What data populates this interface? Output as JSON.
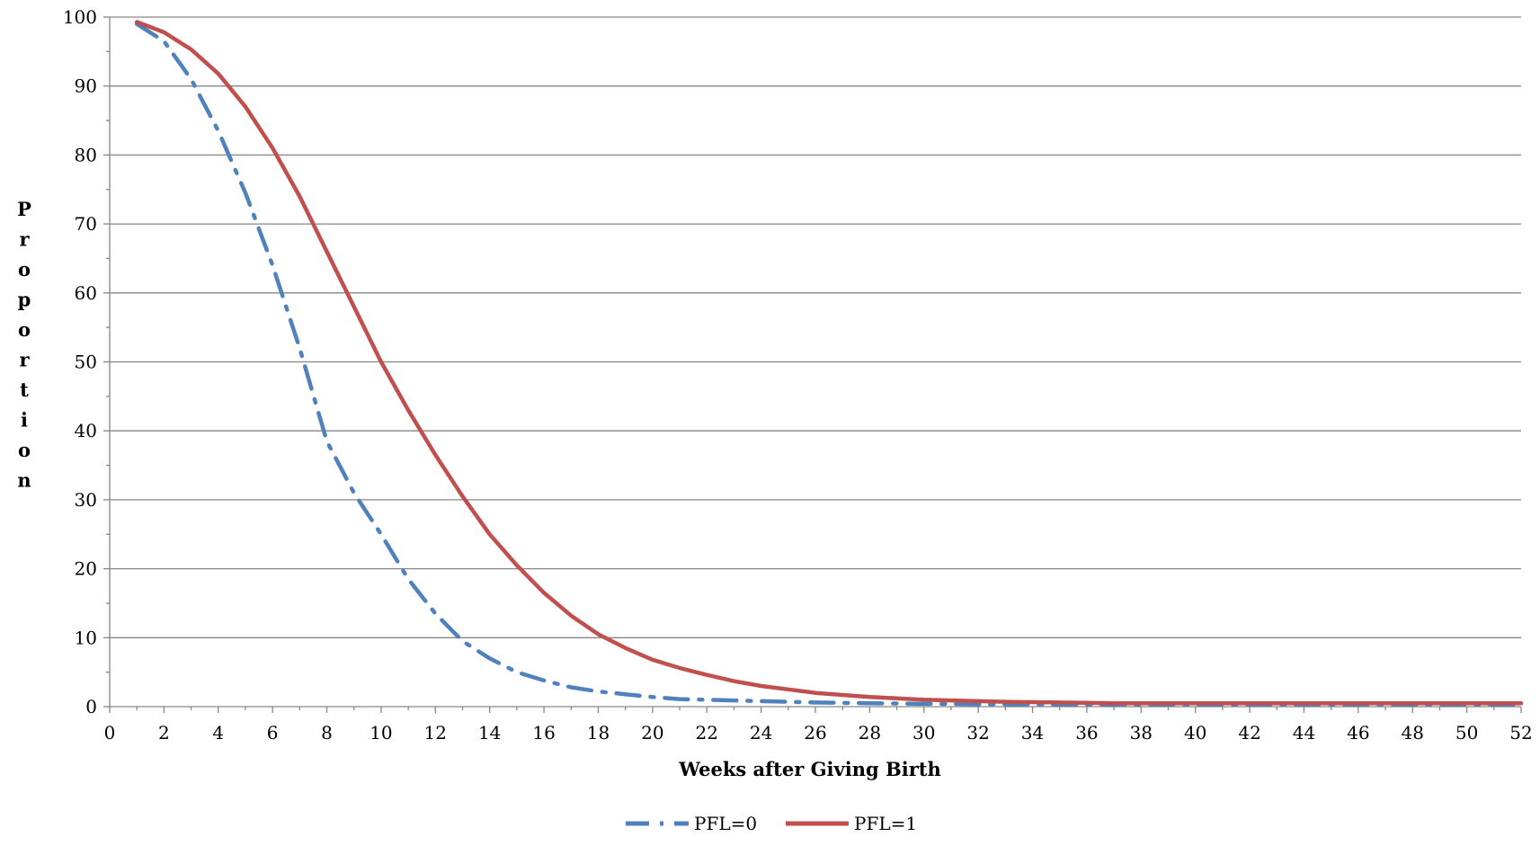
{
  "chart_data": {
    "type": "line",
    "title": "",
    "xlabel": "Weeks after Giving Birth",
    "ylabel": "Proportion",
    "ylabel_chars": [
      "P",
      "r",
      "o",
      "p",
      "o",
      "r",
      "t",
      "i",
      "o",
      "n"
    ],
    "xlim": [
      0,
      52
    ],
    "ylim": [
      0,
      100
    ],
    "x_ticks": [
      0,
      2,
      4,
      6,
      8,
      10,
      12,
      14,
      16,
      18,
      20,
      22,
      24,
      26,
      28,
      30,
      32,
      34,
      36,
      38,
      40,
      42,
      44,
      46,
      48,
      50,
      52
    ],
    "y_ticks": [
      0,
      10,
      20,
      30,
      40,
      50,
      60,
      70,
      80,
      90,
      100
    ],
    "x_tick_labels": [
      "0",
      "2",
      "4",
      "6",
      "8",
      "10",
      "12",
      "14",
      "16",
      "18",
      "20",
      "22",
      "24",
      "26",
      "28",
      "30",
      "32",
      "34",
      "36",
      "38",
      "40",
      "42",
      "44",
      "46",
      "48",
      "50",
      "52"
    ],
    "y_tick_labels": [
      "0",
      "10",
      "20",
      "30",
      "40",
      "50",
      "60",
      "70",
      "80",
      "90",
      "100"
    ],
    "grid": "horizontal",
    "legend_position": "bottom",
    "x": [
      1,
      2,
      3,
      4,
      5,
      6,
      7,
      8,
      9,
      10,
      11,
      12,
      13,
      14,
      15,
      16,
      17,
      18,
      19,
      20,
      21,
      22,
      23,
      24,
      25,
      26,
      27,
      28,
      29,
      30,
      31,
      32,
      33,
      34,
      35,
      36,
      37,
      38,
      39,
      40,
      41,
      42,
      43,
      44,
      45,
      46,
      47,
      48,
      49,
      50,
      51,
      52
    ],
    "series": [
      {
        "name": "PFL=0",
        "color": "#4f81bd",
        "style": "dash-dot",
        "values": [
          99,
          96.5,
          91,
          83.5,
          74.5,
          64,
          52,
          38.5,
          31,
          25,
          18.5,
          13.5,
          9.5,
          7,
          5,
          3.8,
          2.8,
          2.2,
          1.8,
          1.4,
          1.1,
          1.0,
          0.9,
          0.8,
          0.7,
          0.6,
          0.55,
          0.5,
          0.45,
          0.4,
          0.4,
          0.35,
          0.35,
          0.35,
          0.3,
          0.3,
          0.3,
          0.3,
          0.3,
          0.3,
          0.3,
          0.3,
          0.3,
          0.3,
          0.3,
          0.3,
          0.3,
          0.3,
          0.3,
          0.3,
          0.3,
          0.3
        ]
      },
      {
        "name": "PFL=1",
        "color": "#c0504d",
        "style": "solid",
        "values": [
          99.3,
          97.8,
          95.3,
          91.8,
          87,
          81,
          74,
          66,
          58,
          50,
          43,
          36.5,
          30.5,
          25,
          20.5,
          16.5,
          13.2,
          10.5,
          8.5,
          6.8,
          5.6,
          4.6,
          3.7,
          3.0,
          2.5,
          2.0,
          1.7,
          1.4,
          1.2,
          1.0,
          0.9,
          0.8,
          0.7,
          0.65,
          0.6,
          0.55,
          0.5,
          0.5,
          0.5,
          0.5,
          0.5,
          0.5,
          0.5,
          0.5,
          0.5,
          0.5,
          0.5,
          0.5,
          0.5,
          0.5,
          0.5,
          0.5
        ]
      }
    ]
  }
}
